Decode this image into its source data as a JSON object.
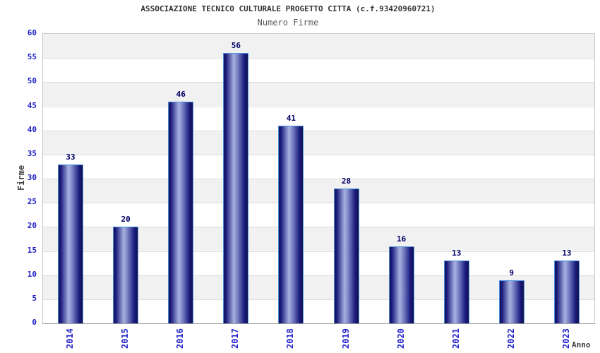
{
  "chart": {
    "title": "ASSOCIAZIONE TECNICO CULTURALE PROGETTO CITTA (c.f.93420960721)",
    "subtitle": "Numero Firme",
    "ylabel": "Firme",
    "xlabel": "Anno"
  },
  "chart_data": {
    "type": "bar",
    "title": "ASSOCIAZIONE TECNICO CULTURALE PROGETTO CITTA (c.f.93420960721)",
    "subtitle": "Numero Firme",
    "xlabel": "Anno",
    "ylabel": "Firme",
    "categories": [
      "2014",
      "2015",
      "2016",
      "2017",
      "2018",
      "2019",
      "2020",
      "2021",
      "2022",
      "2023"
    ],
    "values": [
      33,
      20,
      46,
      56,
      41,
      28,
      16,
      13,
      9,
      13
    ],
    "ylim": [
      0,
      60
    ],
    "ytick_step": 5,
    "yticks": [
      0,
      5,
      10,
      15,
      20,
      25,
      30,
      35,
      40,
      45,
      50,
      55,
      60
    ],
    "grid": true,
    "band_step": 5,
    "legend_position": "none",
    "bar_labels_shown": true
  },
  "colors": {
    "tick_label": "#2222cc",
    "value_label": "#000066",
    "bar_border": "#4d94e0",
    "bar_dark": "#10104e",
    "bar_mid": "#1b1b7e",
    "bar_light": "#a8b2e0",
    "band_gray": "#f1f1f1",
    "band_white": "#ffffff",
    "gridline": "#dcdcdc",
    "plot_border": "#c9c9c9",
    "axis_line": "#999999",
    "title_color": "#333333",
    "subtitle_color": "#5a5a5a",
    "axis_title_color": "#404040"
  }
}
